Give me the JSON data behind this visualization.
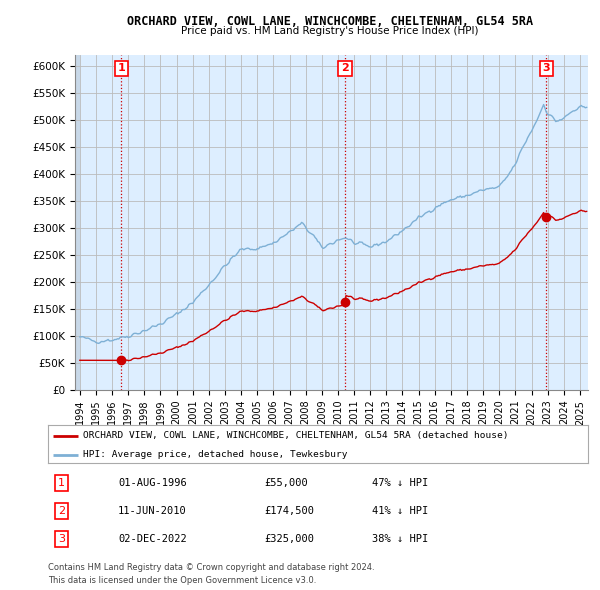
{
  "title": "ORCHARD VIEW, COWL LANE, WINCHCOMBE, CHELTENHAM, GL54 5RA",
  "subtitle": "Price paid vs. HM Land Registry's House Price Index (HPI)",
  "legend_line1": "ORCHARD VIEW, COWL LANE, WINCHCOMBE, CHELTENHAM, GL54 5RA (detached house)",
  "legend_line2": "HPI: Average price, detached house, Tewkesbury",
  "footer1": "Contains HM Land Registry data © Crown copyright and database right 2024.",
  "footer2": "This data is licensed under the Open Government Licence v3.0.",
  "transactions": [
    {
      "num": 1,
      "date": "01-AUG-1996",
      "price": 55000,
      "pct": "47% ↓ HPI",
      "x_year": 1996.58
    },
    {
      "num": 2,
      "date": "11-JUN-2010",
      "price": 174500,
      "pct": "41% ↓ HPI",
      "x_year": 2010.44
    },
    {
      "num": 3,
      "date": "02-DEC-2022",
      "price": 325000,
      "pct": "38% ↓ HPI",
      "x_year": 2022.92
    }
  ],
  "hpi_color": "#7eb0d5",
  "price_color": "#cc0000",
  "vline_color": "#cc0000",
  "grid_color": "#cccccc",
  "chart_bg_color": "#ddeeff",
  "ylim": [
    0,
    620000
  ],
  "yticks": [
    0,
    50000,
    100000,
    150000,
    200000,
    250000,
    300000,
    350000,
    400000,
    450000,
    500000,
    550000,
    600000
  ],
  "xlim_start": 1993.7,
  "xlim_end": 2025.5,
  "xticks": [
    1994,
    1995,
    1996,
    1997,
    1998,
    1999,
    2000,
    2001,
    2002,
    2003,
    2004,
    2005,
    2006,
    2007,
    2008,
    2009,
    2010,
    2011,
    2012,
    2013,
    2014,
    2015,
    2016,
    2017,
    2018,
    2019,
    2020,
    2021,
    2022,
    2023,
    2024,
    2025
  ]
}
